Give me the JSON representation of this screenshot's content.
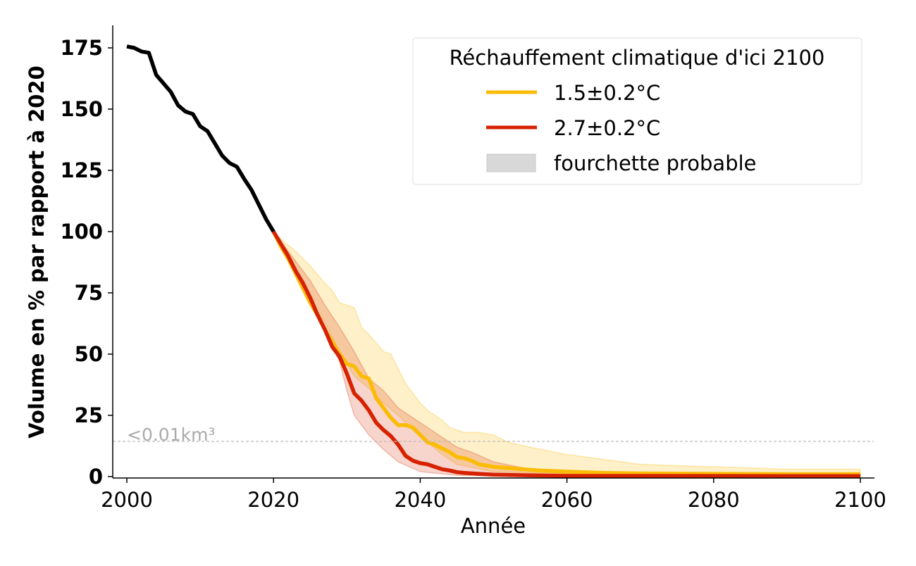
{
  "chart_data": {
    "type": "line",
    "title": "",
    "xlabel": "Année",
    "ylabel": "Volume en % par rapport à 2020",
    "xlim": [
      1998,
      2102
    ],
    "ylim": [
      -0.5,
      184
    ],
    "xticks": [
      2000,
      2020,
      2040,
      2060,
      2080,
      2100
    ],
    "yticks": [
      0,
      25,
      50,
      75,
      100,
      125,
      150,
      175
    ],
    "grid": false,
    "legend": {
      "title": "Réchauffement climatique d'ici 2100",
      "placement": "top-right",
      "entries": [
        "1.5±0.2°C",
        "2.7±0.2°C",
        "fourchette probable"
      ]
    },
    "threshold": {
      "value": 14.4,
      "label": "<0.01km³",
      "color": "#bbbbbb"
    },
    "historical": {
      "color": "#000000",
      "x": [
        2000,
        2001,
        2002,
        2003,
        2004,
        2005,
        2006,
        2007,
        2008,
        2009,
        2010,
        2011,
        2012,
        2013,
        2014,
        2015,
        2016,
        2017,
        2018,
        2019,
        2020
      ],
      "y": [
        175.6,
        175,
        173.5,
        173,
        164,
        160.5,
        157,
        151.5,
        149,
        148,
        143,
        141,
        136,
        131,
        128,
        126.5,
        121.5,
        117,
        111,
        105,
        100
      ]
    },
    "series": [
      {
        "name": "1.5±0.2°C",
        "color": "#fbbc05",
        "x": [
          2020,
          2021,
          2022,
          2023,
          2024,
          2025,
          2026,
          2027,
          2028,
          2029,
          2030,
          2031,
          2032,
          2033,
          2034,
          2035,
          2036,
          2037,
          2038,
          2039,
          2040,
          2041,
          2042,
          2043,
          2044,
          2045,
          2046,
          2047,
          2048,
          2049,
          2050,
          2052,
          2054,
          2056,
          2060,
          2065,
          2070,
          2080,
          2090,
          2100
        ],
        "y": [
          100,
          94,
          89,
          83,
          77,
          71,
          66,
          60,
          55,
          50,
          46,
          45,
          41,
          40,
          32,
          28,
          24,
          21,
          21,
          20,
          17,
          14,
          13,
          11.5,
          10,
          8,
          7.5,
          6.5,
          5,
          4.5,
          4,
          3.5,
          3,
          2.5,
          2,
          1.5,
          1.3,
          1.1,
          1,
          1
        ],
        "band_x": [
          2020,
          2021,
          2023,
          2025,
          2027,
          2028,
          2029,
          2031,
          2032,
          2033,
          2035,
          2036,
          2037,
          2038,
          2040,
          2041,
          2042,
          2043,
          2044,
          2045,
          2046,
          2048,
          2050,
          2052,
          2055,
          2060,
          2065,
          2070,
          2080,
          2090,
          2100
        ],
        "band_upper": [
          100,
          97,
          92,
          86,
          79,
          76,
          71,
          69,
          61,
          58,
          51,
          50,
          44,
          38,
          30,
          27,
          25,
          23,
          20,
          19,
          18,
          18,
          17,
          14,
          12,
          9,
          7,
          5,
          4,
          3,
          3
        ],
        "band_lower_x": [
          2020,
          2021,
          2023,
          2025,
          2027,
          2029,
          2031,
          2033,
          2035,
          2037,
          2039,
          2041,
          2043,
          2045,
          2050,
          2060,
          2100
        ],
        "band_lower": [
          100,
          94,
          83,
          72,
          63,
          51,
          41,
          36,
          30,
          25,
          19,
          14,
          9,
          5,
          2,
          1,
          0.5
        ]
      },
      {
        "name": "2.7±0.2°C",
        "color": "#d62200",
        "x": [
          2020,
          2021,
          2022,
          2023,
          2024,
          2025,
          2026,
          2027,
          2028,
          2029,
          2030,
          2031,
          2032,
          2033,
          2034,
          2035,
          2036,
          2037,
          2038,
          2039,
          2040,
          2041,
          2042,
          2043,
          2044,
          2045,
          2046,
          2048,
          2050,
          2055,
          2060,
          2100
        ],
        "y": [
          100,
          95,
          90,
          84,
          79,
          73,
          66,
          60,
          53,
          49,
          42,
          34,
          31,
          27,
          22,
          19,
          16.5,
          13,
          8.5,
          6.5,
          5.5,
          5,
          4,
          3,
          2.5,
          1.8,
          1.5,
          1.1,
          0.8,
          0.5,
          0.3,
          0.2
        ],
        "band_x": [
          2020,
          2021,
          2023,
          2025,
          2027,
          2029,
          2031,
          2033,
          2035,
          2037,
          2039,
          2041,
          2043,
          2045,
          2047,
          2050,
          2055,
          2060,
          2070,
          2100
        ],
        "band_upper": [
          100,
          96,
          88,
          80,
          70,
          61,
          51,
          40,
          35,
          28,
          24,
          20,
          16,
          12,
          10,
          6,
          3,
          1.5,
          1,
          0.8
        ],
        "band_lower_x": [
          2020,
          2021,
          2023,
          2025,
          2027,
          2029,
          2030,
          2031,
          2033,
          2035,
          2037,
          2040,
          2045,
          2050,
          2100
        ],
        "band_lower": [
          100,
          94,
          82,
          71,
          59,
          47,
          35,
          25,
          17,
          11,
          6,
          2,
          0.5,
          0.2,
          0
        ]
      }
    ]
  }
}
